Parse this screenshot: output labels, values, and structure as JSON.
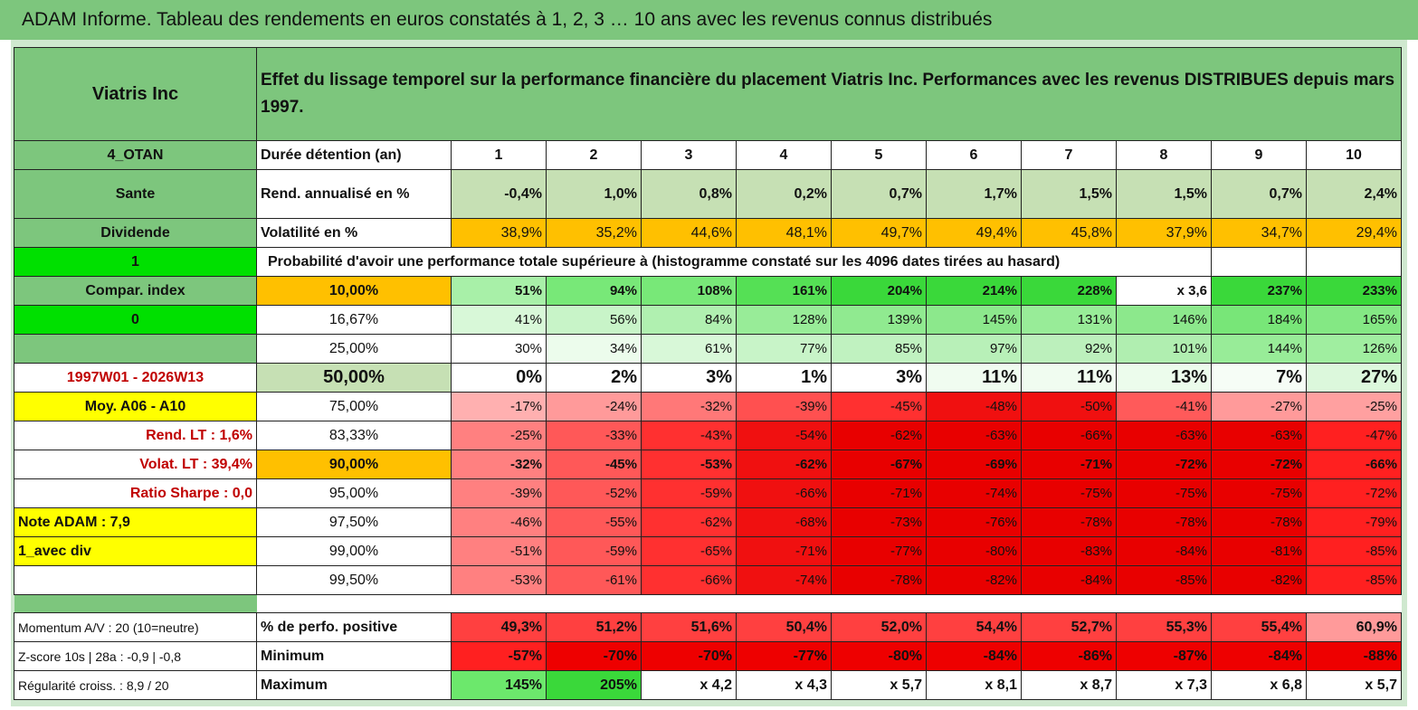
{
  "title": "ADAM Informe. Tableau des rendements en euros constatés à 1, 2, 3 … 10 ans avec les revenus connus distribués",
  "header": {
    "name": "Viatris Inc",
    "description": "Effet du lissage temporel sur la performance financière du placement Viatris Inc. Performances avec les revenus DISTRIBUES depuis mars 1997."
  },
  "left": {
    "a": "4_OTAN",
    "b": "Sante",
    "c": "Dividende",
    "d": "1",
    "e": "Compar. index",
    "f": "0",
    "g": "",
    "h": "1997W01 - 2026W13",
    "i": "Moy. A06 - A10",
    "j": "Rend. LT :   1,6%",
    "k": "Volat. LT :   39,4%",
    "l": "Ratio Sharpe :    0,0",
    "m": "Note ADAM : 7,9",
    "n": "1_avec div",
    "o": "",
    "p": "Momentum A/V : 20 (10=neutre)",
    "q": "Z-score 10s | 28a : -0,9 | -0,8",
    "r": "Régularité croiss. : 8,9 / 20"
  },
  "labels": {
    "duration": "Durée détention (an)",
    "rend": "Rend. annualisé en %",
    "vol": "Volatilité en %",
    "proba": "Probabilité d'avoir une performance totale supérieure à (histogramme constaté sur les 4096 dates tirées au hasard)",
    "pos": "% de perfo. positive",
    "min": "Minimum",
    "max": "Maximum"
  },
  "years": [
    "1",
    "2",
    "3",
    "4",
    "5",
    "6",
    "7",
    "8",
    "9",
    "10"
  ],
  "rend": [
    "-0,4%",
    "1,0%",
    "0,8%",
    "0,2%",
    "0,7%",
    "1,7%",
    "1,5%",
    "1,5%",
    "0,7%",
    "2,4%"
  ],
  "vol": [
    "38,9%",
    "35,2%",
    "44,6%",
    "48,1%",
    "49,7%",
    "49,4%",
    "45,8%",
    "37,9%",
    "34,7%",
    "29,4%"
  ],
  "percentiles": [
    {
      "p": "10,00%",
      "v": [
        "51%",
        "94%",
        "108%",
        "161%",
        "204%",
        "214%",
        "228%",
        "x 3,6",
        "237%",
        "233%"
      ]
    },
    {
      "p": "16,67%",
      "v": [
        "41%",
        "56%",
        "84%",
        "128%",
        "139%",
        "145%",
        "131%",
        "146%",
        "184%",
        "165%"
      ]
    },
    {
      "p": "25,00%",
      "v": [
        "30%",
        "34%",
        "61%",
        "77%",
        "85%",
        "97%",
        "92%",
        "101%",
        "144%",
        "126%"
      ]
    },
    {
      "p": "50,00%",
      "v": [
        "0%",
        "2%",
        "3%",
        "1%",
        "3%",
        "11%",
        "11%",
        "13%",
        "7%",
        "27%"
      ]
    },
    {
      "p": "75,00%",
      "v": [
        "-17%",
        "-24%",
        "-32%",
        "-39%",
        "-45%",
        "-48%",
        "-50%",
        "-41%",
        "-27%",
        "-25%"
      ]
    },
    {
      "p": "83,33%",
      "v": [
        "-25%",
        "-33%",
        "-43%",
        "-54%",
        "-62%",
        "-63%",
        "-66%",
        "-63%",
        "-63%",
        "-47%"
      ]
    },
    {
      "p": "90,00%",
      "v": [
        "-32%",
        "-45%",
        "-53%",
        "-62%",
        "-67%",
        "-69%",
        "-71%",
        "-72%",
        "-72%",
        "-66%"
      ]
    },
    {
      "p": "95,00%",
      "v": [
        "-39%",
        "-52%",
        "-59%",
        "-66%",
        "-71%",
        "-74%",
        "-75%",
        "-75%",
        "-75%",
        "-72%"
      ]
    },
    {
      "p": "97,50%",
      "v": [
        "-46%",
        "-55%",
        "-62%",
        "-68%",
        "-73%",
        "-76%",
        "-78%",
        "-78%",
        "-78%",
        "-79%"
      ]
    },
    {
      "p": "99,00%",
      "v": [
        "-51%",
        "-59%",
        "-65%",
        "-71%",
        "-77%",
        "-80%",
        "-83%",
        "-84%",
        "-81%",
        "-85%"
      ]
    },
    {
      "p": "99,50%",
      "v": [
        "-53%",
        "-61%",
        "-66%",
        "-74%",
        "-78%",
        "-82%",
        "-84%",
        "-85%",
        "-82%",
        "-85%"
      ]
    }
  ],
  "pos": [
    "49,3%",
    "51,2%",
    "51,6%",
    "50,4%",
    "52,0%",
    "54,4%",
    "52,7%",
    "55,3%",
    "55,4%",
    "60,9%"
  ],
  "min": [
    "-57%",
    "-70%",
    "-70%",
    "-77%",
    "-80%",
    "-84%",
    "-86%",
    "-87%",
    "-84%",
    "-88%"
  ],
  "max": [
    "145%",
    "205%",
    "x 4,2",
    "x 4,3",
    "x 5,7",
    "x 8,1",
    "x 8,7",
    "x 7,3",
    "x 6,8",
    "x 5,7"
  ],
  "colors": {
    "rend": [
      "#c6e0b4",
      "#c6e0b4",
      "#c6e0b4",
      "#c6e0b4",
      "#c6e0b4",
      "#c6e0b4",
      "#c6e0b4",
      "#c6e0b4",
      "#c6e0b4",
      "#c6e0b4"
    ],
    "vol": [
      "#ffc000",
      "#ffc000",
      "#ffc000",
      "#ffc000",
      "#ffc000",
      "#ffc000",
      "#ffc000",
      "#ffc000",
      "#ffc000",
      "#ffc000"
    ],
    "p0": [
      "#a8f0a8",
      "#78e878",
      "#78e878",
      "#55e055",
      "#3ad83a",
      "#3ad83a",
      "#3ad83a",
      "#ffffff",
      "#3ad83a",
      "#3ad83a"
    ],
    "p1": [
      "#d8f8d8",
      "#c8f4c8",
      "#b0f0b0",
      "#98ec98",
      "#90ea90",
      "#8ce88c",
      "#98ec98",
      "#8ce88c",
      "#78e678",
      "#84e884"
    ],
    "p2": [
      "#ffffff",
      "#ecfcec",
      "#d8f8d8",
      "#c8f4c8",
      "#c0f2c0",
      "#b8f0b8",
      "#bcf0bc",
      "#b0ee b0",
      "#98ec98",
      "#a0ee a0"
    ],
    "p3": [
      "#ffffff",
      "#ffffff",
      "#ffffff",
      "#ffffff",
      "#ffffff",
      "#f0fcf0",
      "#f0fcf0",
      "#ecfcec",
      "#f6fdf6",
      "#dcf8dc"
    ],
    "p4": [
      "#ffb0b0",
      "#ff9a9a",
      "#ff7878",
      "#ff5050",
      "#ff3030",
      "#f01010",
      "#f01010",
      "#ff5a5a",
      "#ff9a9a",
      "#ffa0a0"
    ],
    "p5": [
      "#ff8080",
      "#ff5858",
      "#ff3030",
      "#f01010",
      "#e80000",
      "#e80000",
      "#e80000",
      "#e80000",
      "#e80000",
      "#ff2020"
    ],
    "pos": [
      "#ff4040",
      "#ff4040",
      "#ff4040",
      "#ff4040",
      "#ff4040",
      "#ff4040",
      "#ff4040",
      "#ff4040",
      "#ff4040",
      "#ff9a9a"
    ],
    "min": [
      "#ff2020",
      "#ee0000",
      "#ee0000",
      "#ee0000",
      "#ee0000",
      "#ee0000",
      "#ee0000",
      "#ee0000",
      "#ee0000",
      "#ee0000"
    ],
    "max": [
      "#6ce86c",
      "#3ad83a",
      "#ffffff",
      "#ffffff",
      "#ffffff",
      "#ffffff",
      "#ffffff",
      "#ffffff",
      "#ffffff",
      "#ffffff"
    ]
  }
}
